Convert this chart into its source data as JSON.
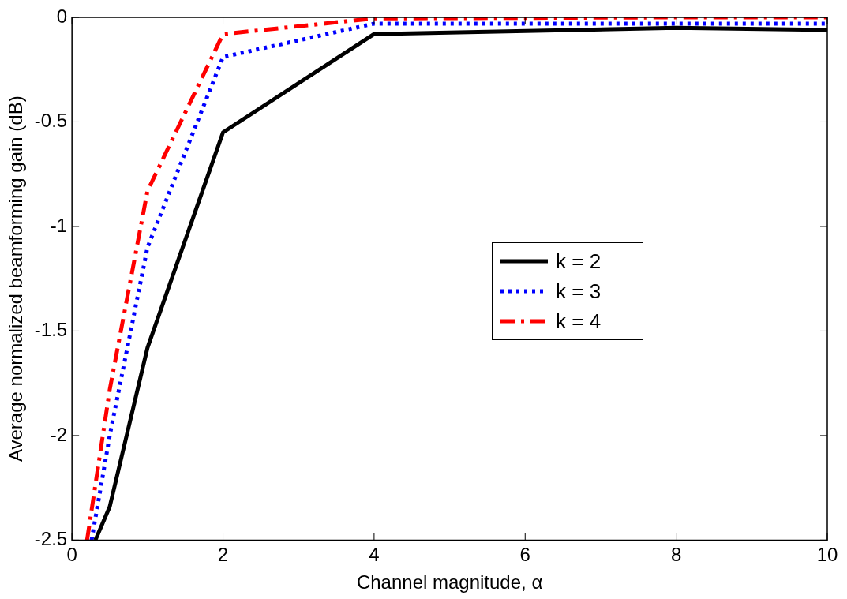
{
  "chart_data": {
    "type": "line",
    "xlabel": "Channel magnitude, α",
    "ylabel": "Average normalized beamforming gain (dB)",
    "xlim": [
      0,
      10
    ],
    "xticks": [
      0,
      2,
      4,
      6,
      8,
      10
    ],
    "ylim": [
      -2.5,
      0
    ],
    "yticks": [
      -2.5,
      -2,
      -1.5,
      -1,
      -0.5,
      0
    ],
    "grid": false,
    "legend": "right",
    "marker": "none",
    "series": [
      {
        "name": "k = 2",
        "color": "#000000",
        "line_style": "solid",
        "x": [
          0.31,
          0.5,
          1,
          2,
          4,
          8,
          10
        ],
        "values": [
          -2.5,
          -2.34,
          -1.58,
          -0.55,
          -0.08,
          -0.05,
          -0.06
        ]
      },
      {
        "name": "k = 3",
        "color": "#0000ff",
        "line_style": "dotted",
        "x": [
          0.26,
          0.5,
          1,
          2,
          4,
          8,
          10
        ],
        "values": [
          -2.5,
          -2.0,
          -1.1,
          -0.19,
          -0.03,
          -0.03,
          -0.03
        ]
      },
      {
        "name": "k = 4",
        "color": "#ff0000",
        "line_style": "dashdot",
        "x": [
          0.2,
          0.5,
          1,
          2,
          4,
          8,
          10
        ],
        "values": [
          -2.5,
          -1.78,
          -0.83,
          -0.08,
          -0.005,
          0,
          0
        ]
      }
    ]
  }
}
